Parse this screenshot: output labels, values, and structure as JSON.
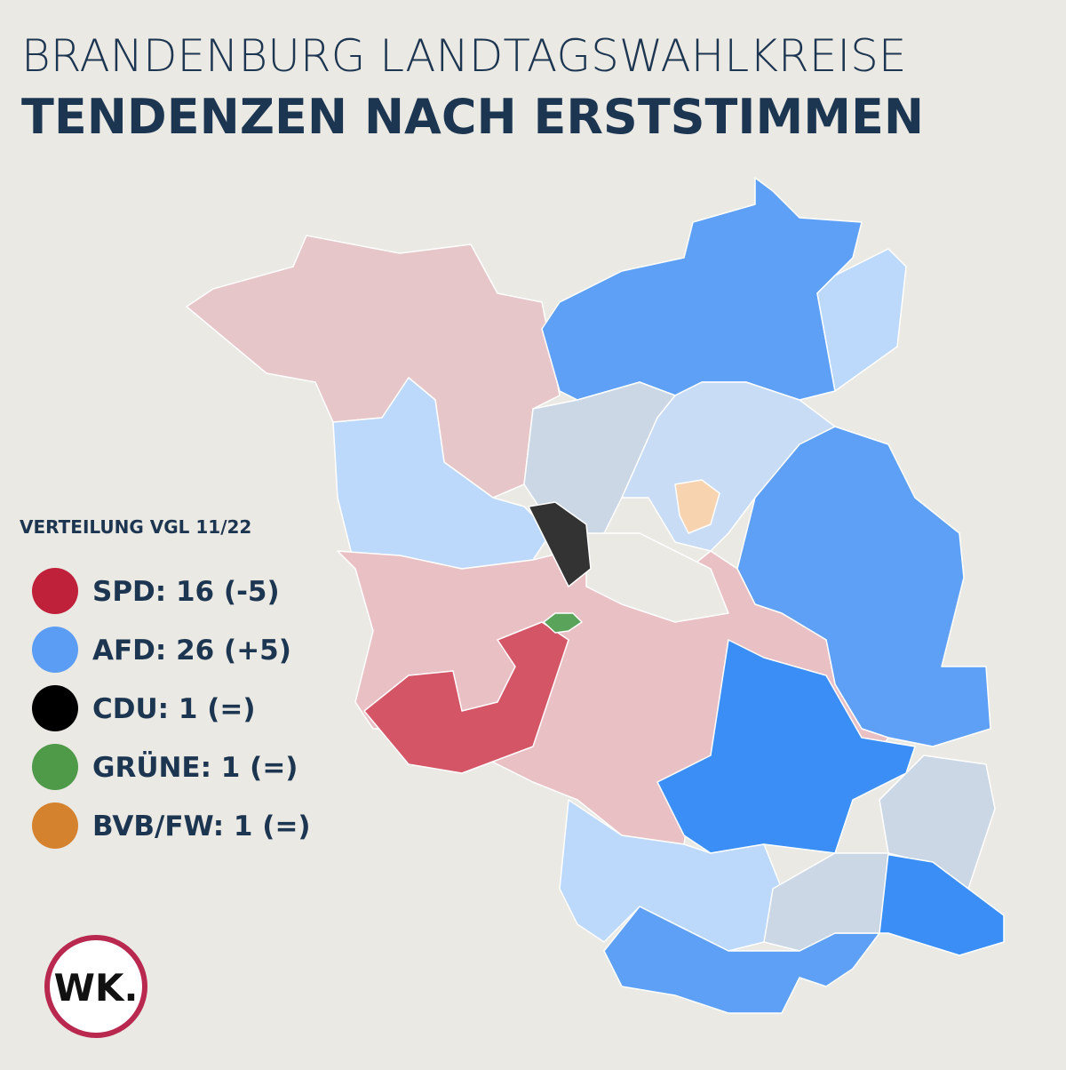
{
  "header": {
    "title": "BRANDENBURG LANDTAGSWAHLKREISE",
    "subtitle": "TENDENZEN NACH ERSTSTIMMEN"
  },
  "legend": {
    "title": "VERTEILUNG VGL 11/22",
    "items": [
      {
        "label": "SPD: 16 (-5)",
        "color": "#c0213a"
      },
      {
        "label": "AFD: 26 (+5)",
        "color": "#5b9cf5"
      },
      {
        "label": "CDU: 1 (=)",
        "color": "#000000"
      },
      {
        "label": "GRÜNE: 1 (=)",
        "color": "#4e9a48"
      },
      {
        "label": "BVB/FW: 1 (=)",
        "color": "#d5822f"
      }
    ]
  },
  "logo": {
    "text": "WK."
  }
}
